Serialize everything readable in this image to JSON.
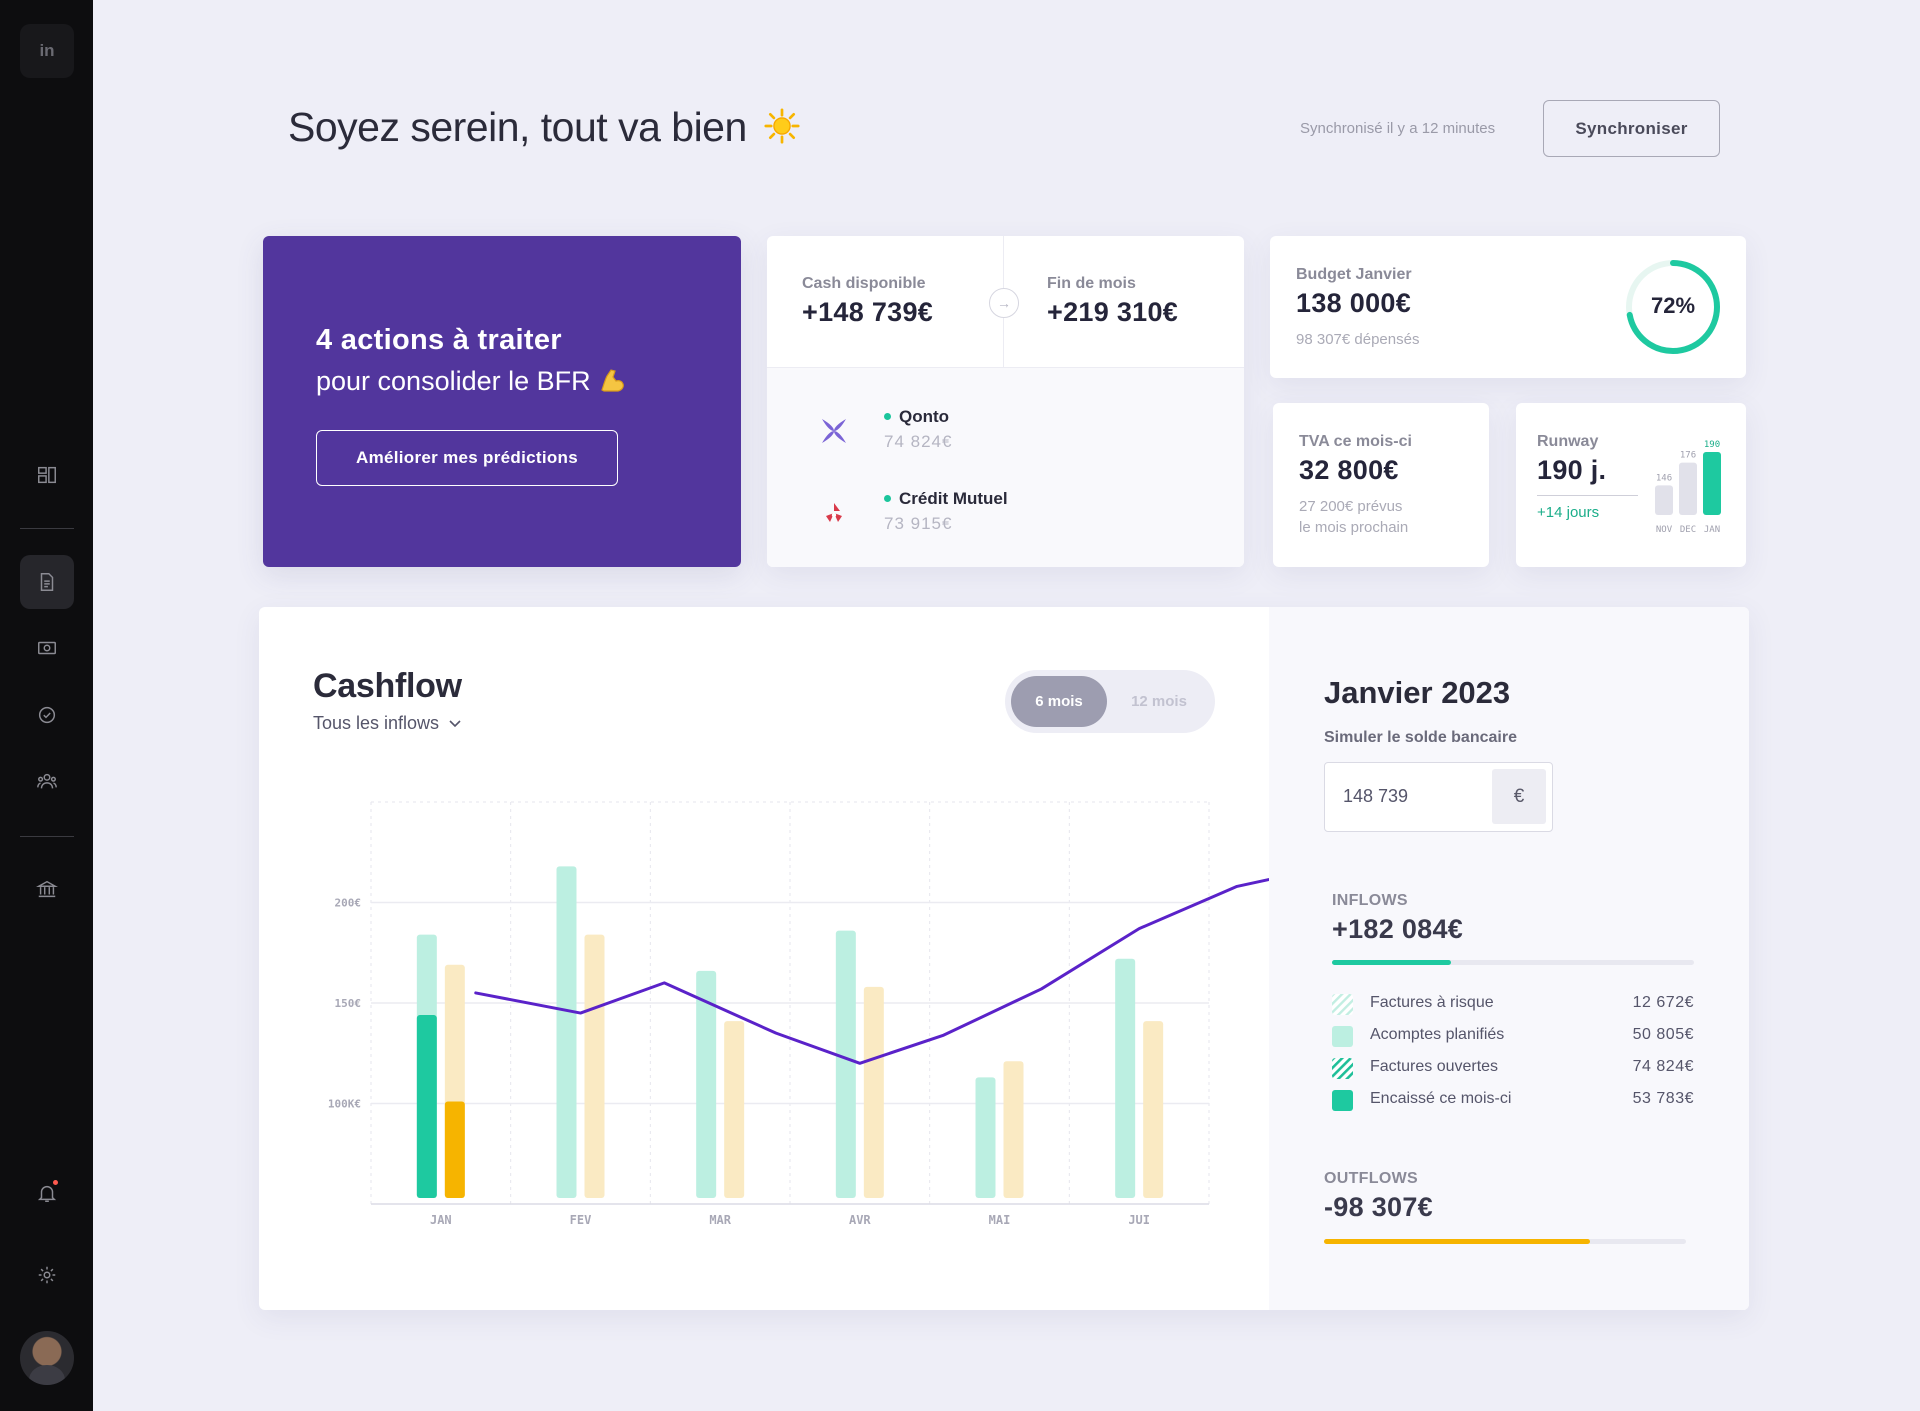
{
  "sidebar": {
    "logo_text": "in",
    "nav_icons": [
      "dashboard-icon",
      "document-icon",
      "cash-icon",
      "check-circle-icon",
      "team-icon",
      "bank-icon"
    ],
    "bottom_icons": [
      "bell-icon",
      "gear-icon"
    ]
  },
  "header": {
    "title": "Soyez serein, tout va bien",
    "title_icon": "sun-icon",
    "sync_status": "Synchronisé il y a 12 minutes",
    "sync_button": "Synchroniser"
  },
  "actions_card": {
    "title": "4 actions à traiter",
    "subtitle": "pour consolider le BFR",
    "subtitle_icon": "flexed-biceps-icon",
    "button": "Améliorer mes prédictions"
  },
  "cash_card": {
    "cash_label": "Cash disponible",
    "cash_value": "+148 739€",
    "month_end_label": "Fin de mois",
    "month_end_value": "+219 310€",
    "banks": [
      {
        "name": "Qonto",
        "amount": "74  824€",
        "icon": "qonto-logo-icon"
      },
      {
        "name": "Crédit Mutuel",
        "amount": "73  915€",
        "icon": "credit-mutuel-logo-icon"
      }
    ]
  },
  "budget_card": {
    "label": "Budget Janvier",
    "value": "138 000€",
    "spent": "98 307€ dépensés",
    "percent_label": "72%",
    "percent": 72
  },
  "tva_card": {
    "label": "TVA ce mois-ci",
    "value": "32 800€",
    "note_line1": "27 200€ prévus",
    "note_line2": "le mois prochain"
  },
  "runway_card": {
    "label": "Runway",
    "value": "190 j.",
    "delta": "+14 jours",
    "mini_chart": {
      "categories": [
        "NOV",
        "DEC",
        "JAN"
      ],
      "values": [
        146,
        176,
        190
      ]
    }
  },
  "cashflow": {
    "title": "Cashflow",
    "filter": "Tous les inflows",
    "toggle": [
      "6 mois",
      "12 mois"
    ],
    "active_toggle": "6 mois"
  },
  "chart_data": {
    "type": "bar",
    "categories": [
      "JAN",
      "FEV",
      "MAR",
      "AVR",
      "MAI",
      "JUI"
    ],
    "y_ticks": [
      "100K€",
      "150€",
      "200€"
    ],
    "y_tick_values": [
      100,
      150,
      200
    ],
    "ylim": [
      50,
      250
    ],
    "series": [
      {
        "values": [
          184,
          218,
          166,
          186,
          113,
          172
        ],
        "color": "#bcefe1"
      },
      {
        "values": [
          169,
          184,
          141,
          158,
          121,
          141
        ],
        "color": "#faeac3"
      },
      {
        "values": [
          144,
          null,
          null,
          null,
          null,
          null
        ],
        "color": "#1ec9a0"
      },
      {
        "values": [
          101,
          null,
          null,
          null,
          null,
          null
        ],
        "color": "#f6b400"
      },
      {
        "values": [
          155,
          145,
          160,
          135,
          120,
          134,
          157,
          187,
          208,
          220,
          225
        ],
        "x": [
          0.75,
          1.5,
          2.1,
          2.9,
          3.5,
          4.1,
          4.8,
          5.5,
          6.2,
          7.0,
          7.5
        ],
        "color": "#5a22c9",
        "type": "line"
      }
    ]
  },
  "january_panel": {
    "title": "Janvier 2023",
    "simulate_label": "Simuler le solde bancaire",
    "simulate_value": "148 739",
    "currency": "€",
    "inflows_label": "INFLOWS",
    "inflows_value": "+182 084€",
    "inflows_progress": 0.33,
    "legend": [
      {
        "label": "Factures à risque",
        "value": "12  672€",
        "swatch": "light-hatched"
      },
      {
        "label": "Acomptes planifiés",
        "value": "50  805€",
        "swatch": "light-solid"
      },
      {
        "label": "Factures ouvertes",
        "value": "74  824€",
        "swatch": "dark-hatched"
      },
      {
        "label": "Encaissé ce mois-ci",
        "value": "53  783€",
        "swatch": "solid"
      }
    ],
    "outflows_label": "OUTFLOWS",
    "outflows_value": "-98 307€",
    "outflows_progress": 0.735
  },
  "colors": {
    "accent_purple": "#52369d",
    "green": "#1ec9a0",
    "yellow": "#f6b400",
    "line_purple": "#5a22c9"
  }
}
